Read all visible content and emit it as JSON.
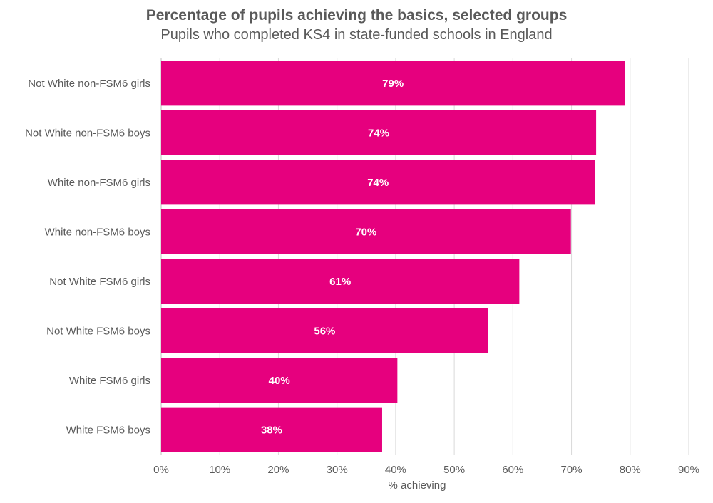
{
  "chart_data": {
    "type": "bar",
    "orientation": "horizontal",
    "title": "Percentage of pupils achieving the basics, selected groups",
    "subtitle": "Pupils who completed KS4 in state-funded schools in England",
    "xlabel": "% achieving",
    "ylabel": "",
    "xlim": [
      0,
      90
    ],
    "x_ticks": [
      "0%",
      "10%",
      "20%",
      "30%",
      "40%",
      "50%",
      "60%",
      "70%",
      "80%",
      "90%"
    ],
    "grid": true,
    "legend": "none",
    "color": "#e6007e",
    "categories": [
      "Not White non-FSM6 girls",
      "Not White non-FSM6 boys",
      "White non-FSM6 girls",
      "White non-FSM6 boys",
      "Not White FSM6 girls",
      "Not White FSM6 boys",
      "White FSM6 girls",
      "White FSM6 boys"
    ],
    "values": [
      79.1,
      74.2,
      74.0,
      69.9,
      61.1,
      55.8,
      40.3,
      37.7
    ],
    "data_labels": [
      "79%",
      "74%",
      "74%",
      "70%",
      "61%",
      "56%",
      "40%",
      "38%"
    ]
  }
}
